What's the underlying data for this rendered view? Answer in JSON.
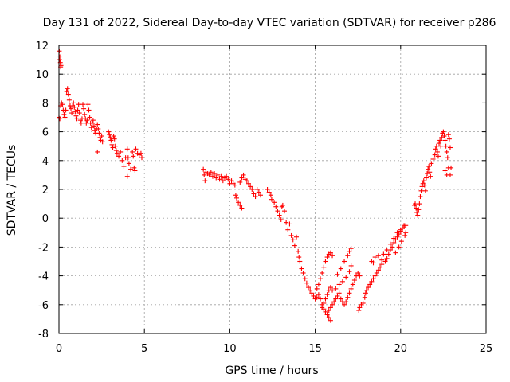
{
  "chart_data": {
    "type": "scatter",
    "title": "Day 131 of 2022, Sidereal Day-to-day VTEC variation (SDTVAR) for receiver p286",
    "xlabel": "GPS time / hours",
    "ylabel": "SDTVAR / TECUs",
    "xlim": [
      0,
      25
    ],
    "ylim": [
      -8,
      12
    ],
    "xticks": [
      0,
      5,
      10,
      15,
      20,
      25
    ],
    "yticks": [
      -8,
      -6,
      -4,
      -2,
      0,
      2,
      4,
      6,
      8,
      10,
      12
    ],
    "grid": true,
    "marker": "+",
    "color": "#ff0000",
    "series": [
      {
        "name": "SDTVAR",
        "points": [
          [
            0.02,
            11.6
          ],
          [
            0.05,
            11.2
          ],
          [
            0.08,
            10.8
          ],
          [
            0.1,
            10.5
          ],
          [
            0.04,
            11.0
          ],
          [
            0.12,
            10.6
          ],
          [
            0.0,
            7.0
          ],
          [
            0.05,
            6.9
          ],
          [
            0.1,
            7.8
          ],
          [
            0.15,
            8.0
          ],
          [
            0.2,
            7.9
          ],
          [
            0.25,
            7.5
          ],
          [
            0.3,
            7.2
          ],
          [
            0.35,
            7.0
          ],
          [
            0.4,
            7.5
          ],
          [
            0.45,
            8.8
          ],
          [
            0.5,
            9.0
          ],
          [
            0.55,
            8.6
          ],
          [
            0.6,
            8.2
          ],
          [
            0.65,
            7.8
          ],
          [
            0.7,
            7.6
          ],
          [
            0.75,
            7.3
          ],
          [
            0.8,
            7.8
          ],
          [
            0.85,
            8.0
          ],
          [
            0.9,
            7.7
          ],
          [
            0.95,
            7.4
          ],
          [
            1.0,
            7.1
          ],
          [
            1.05,
            6.9
          ],
          [
            1.1,
            7.5
          ],
          [
            1.15,
            7.9
          ],
          [
            1.2,
            7.3
          ],
          [
            1.25,
            6.8
          ],
          [
            1.3,
            6.6
          ],
          [
            1.35,
            6.9
          ],
          [
            1.4,
            7.9
          ],
          [
            1.45,
            7.6
          ],
          [
            1.5,
            7.2
          ],
          [
            1.55,
            6.9
          ],
          [
            1.6,
            6.6
          ],
          [
            1.65,
            6.8
          ],
          [
            1.7,
            7.9
          ],
          [
            1.75,
            7.5
          ],
          [
            1.8,
            7.0
          ],
          [
            1.85,
            6.6
          ],
          [
            1.9,
            6.3
          ],
          [
            1.95,
            6.6
          ],
          [
            2.0,
            6.8
          ],
          [
            2.05,
            6.4
          ],
          [
            2.1,
            6.1
          ],
          [
            2.15,
            5.9
          ],
          [
            2.2,
            6.2
          ],
          [
            2.25,
            6.5
          ],
          [
            2.3,
            6.2
          ],
          [
            2.35,
            5.9
          ],
          [
            2.4,
            5.6
          ],
          [
            2.45,
            5.4
          ],
          [
            2.5,
            5.7
          ],
          [
            2.25,
            4.6
          ],
          [
            2.55,
            5.3
          ],
          [
            2.9,
            6.0
          ],
          [
            2.95,
            5.8
          ],
          [
            3.0,
            5.6
          ],
          [
            3.05,
            5.4
          ],
          [
            3.1,
            5.1
          ],
          [
            3.15,
            4.9
          ],
          [
            3.2,
            5.7
          ],
          [
            3.25,
            5.5
          ],
          [
            3.3,
            5.0
          ],
          [
            3.35,
            4.7
          ],
          [
            3.4,
            4.5
          ],
          [
            3.5,
            4.3
          ],
          [
            3.6,
            4.6
          ],
          [
            3.7,
            4.0
          ],
          [
            3.8,
            3.6
          ],
          [
            3.9,
            4.2
          ],
          [
            4.0,
            4.8
          ],
          [
            4.05,
            4.2
          ],
          [
            4.1,
            3.8
          ],
          [
            4.0,
            2.9
          ],
          [
            4.2,
            3.4
          ],
          [
            4.3,
            4.6
          ],
          [
            4.35,
            4.3
          ],
          [
            4.4,
            3.5
          ],
          [
            4.45,
            3.3
          ],
          [
            4.5,
            4.8
          ],
          [
            4.6,
            4.5
          ],
          [
            4.7,
            4.4
          ],
          [
            4.8,
            4.5
          ],
          [
            4.85,
            4.2
          ],
          [
            8.45,
            3.4
          ],
          [
            8.5,
            3.0
          ],
          [
            8.55,
            2.6
          ],
          [
            8.6,
            3.2
          ],
          [
            8.7,
            3.1
          ],
          [
            8.8,
            3.0
          ],
          [
            8.9,
            3.2
          ],
          [
            9.0,
            2.9
          ],
          [
            9.1,
            3.1
          ],
          [
            9.2,
            2.8
          ],
          [
            9.3,
            3.0
          ],
          [
            9.4,
            2.7
          ],
          [
            9.5,
            2.9
          ],
          [
            9.6,
            2.6
          ],
          [
            9.7,
            2.8
          ],
          [
            9.8,
            2.9
          ],
          [
            9.9,
            2.7
          ],
          [
            10.0,
            2.4
          ],
          [
            10.1,
            2.6
          ],
          [
            10.2,
            2.4
          ],
          [
            10.3,
            2.3
          ],
          [
            10.35,
            1.6
          ],
          [
            10.4,
            1.4
          ],
          [
            10.5,
            1.1
          ],
          [
            10.6,
            0.9
          ],
          [
            10.7,
            0.7
          ],
          [
            10.6,
            2.5
          ],
          [
            10.7,
            2.8
          ],
          [
            10.8,
            3.0
          ],
          [
            10.9,
            2.7
          ],
          [
            11.0,
            2.6
          ],
          [
            11.1,
            2.4
          ],
          [
            11.2,
            2.2
          ],
          [
            11.3,
            2.0
          ],
          [
            11.4,
            1.7
          ],
          [
            11.5,
            1.5
          ],
          [
            11.6,
            2.0
          ],
          [
            11.7,
            1.8
          ],
          [
            11.8,
            1.6
          ],
          [
            12.2,
            2.0
          ],
          [
            12.3,
            1.8
          ],
          [
            12.4,
            1.6
          ],
          [
            12.45,
            1.3
          ],
          [
            12.6,
            1.1
          ],
          [
            12.7,
            0.8
          ],
          [
            12.8,
            0.5
          ],
          [
            12.9,
            0.2
          ],
          [
            13.0,
            -0.1
          ],
          [
            13.05,
            0.8
          ],
          [
            13.1,
            0.9
          ],
          [
            13.2,
            0.5
          ],
          [
            13.3,
            -0.3
          ],
          [
            13.4,
            -0.8
          ],
          [
            13.5,
            -0.4
          ],
          [
            13.6,
            -1.2
          ],
          [
            13.7,
            -1.5
          ],
          [
            13.8,
            -1.9
          ],
          [
            13.9,
            -1.3
          ],
          [
            14.0,
            -2.3
          ],
          [
            14.05,
            -2.7
          ],
          [
            14.1,
            -3.0
          ],
          [
            14.2,
            -3.5
          ],
          [
            14.3,
            -3.8
          ],
          [
            14.4,
            -4.2
          ],
          [
            14.5,
            -4.5
          ],
          [
            14.6,
            -4.8
          ],
          [
            14.7,
            -5.0
          ],
          [
            14.8,
            -5.2
          ],
          [
            14.9,
            -5.4
          ],
          [
            15.0,
            -5.6
          ],
          [
            15.1,
            -5.5
          ],
          [
            15.2,
            -5.3
          ],
          [
            15.3,
            -5.6
          ],
          [
            15.4,
            -6.0
          ],
          [
            15.5,
            -6.3
          ],
          [
            15.6,
            -6.5
          ],
          [
            15.7,
            -6.7
          ],
          [
            15.8,
            -6.9
          ],
          [
            15.9,
            -7.1
          ],
          [
            15.8,
            -6.4
          ],
          [
            15.9,
            -6.2
          ],
          [
            16.0,
            -6.0
          ],
          [
            16.1,
            -5.8
          ],
          [
            16.2,
            -5.6
          ],
          [
            16.3,
            -5.4
          ],
          [
            16.4,
            -5.2
          ],
          [
            15.1,
            -4.9
          ],
          [
            15.2,
            -4.6
          ],
          [
            15.3,
            -4.2
          ],
          [
            15.4,
            -3.8
          ],
          [
            15.5,
            -3.4
          ],
          [
            15.6,
            -3.0
          ],
          [
            15.7,
            -2.7
          ],
          [
            15.8,
            -2.5
          ],
          [
            15.9,
            -2.4
          ],
          [
            16.0,
            -2.6
          ],
          [
            15.4,
            -6.2
          ],
          [
            15.5,
            -5.9
          ],
          [
            15.6,
            -5.6
          ],
          [
            15.7,
            -5.3
          ],
          [
            15.8,
            -5.0
          ],
          [
            15.9,
            -4.8
          ],
          [
            16.0,
            -5.0
          ],
          [
            16.2,
            -4.9
          ],
          [
            16.4,
            -4.6
          ],
          [
            16.6,
            -4.4
          ],
          [
            16.8,
            -4.1
          ],
          [
            17.0,
            -3.7
          ],
          [
            17.1,
            -3.3
          ],
          [
            16.3,
            -3.9
          ],
          [
            16.5,
            -3.5
          ],
          [
            16.7,
            -3.0
          ],
          [
            16.9,
            -2.6
          ],
          [
            17.0,
            -2.3
          ],
          [
            17.1,
            -2.1
          ],
          [
            16.5,
            -5.6
          ],
          [
            16.6,
            -5.8
          ],
          [
            16.7,
            -6.0
          ],
          [
            16.8,
            -5.8
          ],
          [
            16.9,
            -5.5
          ],
          [
            17.0,
            -5.2
          ],
          [
            17.1,
            -4.9
          ],
          [
            17.2,
            -4.6
          ],
          [
            17.3,
            -4.3
          ],
          [
            17.4,
            -4.0
          ],
          [
            17.5,
            -3.8
          ],
          [
            17.6,
            -4.0
          ],
          [
            17.55,
            -6.4
          ],
          [
            17.6,
            -6.2
          ],
          [
            17.7,
            -6.0
          ],
          [
            17.8,
            -5.9
          ],
          [
            17.9,
            -5.5
          ],
          [
            17.95,
            -5.2
          ],
          [
            18.0,
            -5.0
          ],
          [
            18.1,
            -4.8
          ],
          [
            18.2,
            -4.6
          ],
          [
            18.3,
            -4.4
          ],
          [
            18.4,
            -4.2
          ],
          [
            18.5,
            -4.0
          ],
          [
            18.6,
            -3.8
          ],
          [
            18.7,
            -3.6
          ],
          [
            18.8,
            -3.4
          ],
          [
            18.9,
            -3.2
          ],
          [
            18.3,
            -3.0
          ],
          [
            18.4,
            -3.1
          ],
          [
            18.5,
            -2.7
          ],
          [
            18.7,
            -2.6
          ],
          [
            18.9,
            -2.9
          ],
          [
            19.0,
            -2.5
          ],
          [
            19.1,
            -3.0
          ],
          [
            19.2,
            -2.8
          ],
          [
            19.3,
            -2.5
          ],
          [
            19.4,
            -2.2
          ],
          [
            19.5,
            -2.0
          ],
          [
            19.6,
            -1.7
          ],
          [
            19.7,
            -1.5
          ],
          [
            19.8,
            -1.3
          ],
          [
            19.9,
            -1.1
          ],
          [
            20.0,
            -0.9
          ],
          [
            20.1,
            -0.7
          ],
          [
            20.2,
            -0.6
          ],
          [
            20.3,
            -0.5
          ],
          [
            19.2,
            -2.2
          ],
          [
            19.4,
            -1.8
          ],
          [
            19.6,
            -1.4
          ],
          [
            19.8,
            -1.0
          ],
          [
            20.0,
            -0.8
          ],
          [
            20.2,
            -0.5
          ],
          [
            20.25,
            -1.2
          ],
          [
            20.3,
            -1.0
          ],
          [
            19.7,
            -2.4
          ],
          [
            19.9,
            -2.0
          ],
          [
            20.05,
            -1.6
          ],
          [
            20.8,
            0.9
          ],
          [
            20.85,
            1.0
          ],
          [
            20.9,
            0.7
          ],
          [
            20.95,
            0.4
          ],
          [
            21.0,
            0.2
          ],
          [
            21.05,
            0.6
          ],
          [
            21.1,
            1.0
          ],
          [
            21.15,
            1.5
          ],
          [
            21.2,
            1.9
          ],
          [
            21.25,
            2.2
          ],
          [
            21.3,
            2.4
          ],
          [
            21.35,
            2.6
          ],
          [
            21.4,
            2.3
          ],
          [
            21.45,
            1.9
          ],
          [
            21.5,
            2.8
          ],
          [
            21.55,
            3.1
          ],
          [
            21.6,
            3.4
          ],
          [
            21.65,
            3.6
          ],
          [
            21.7,
            3.2
          ],
          [
            21.75,
            2.9
          ],
          [
            21.8,
            3.8
          ],
          [
            21.9,
            4.1
          ],
          [
            22.0,
            4.4
          ],
          [
            22.05,
            4.8
          ],
          [
            22.1,
            5.0
          ],
          [
            22.15,
            4.6
          ],
          [
            22.2,
            4.3
          ],
          [
            22.25,
            5.2
          ],
          [
            22.3,
            5.4
          ],
          [
            22.35,
            5.0
          ],
          [
            22.4,
            5.6
          ],
          [
            22.45,
            5.9
          ],
          [
            22.5,
            6.0
          ],
          [
            22.55,
            5.7
          ],
          [
            22.6,
            5.4
          ],
          [
            22.65,
            5.0
          ],
          [
            22.7,
            4.6
          ],
          [
            22.75,
            4.2
          ],
          [
            22.8,
            5.8
          ],
          [
            22.85,
            5.5
          ],
          [
            22.9,
            4.9
          ],
          [
            22.95,
            3.5
          ],
          [
            22.9,
            3.0
          ],
          [
            22.6,
            3.3
          ],
          [
            22.7,
            3.0
          ],
          [
            22.8,
            3.5
          ]
        ]
      }
    ]
  }
}
